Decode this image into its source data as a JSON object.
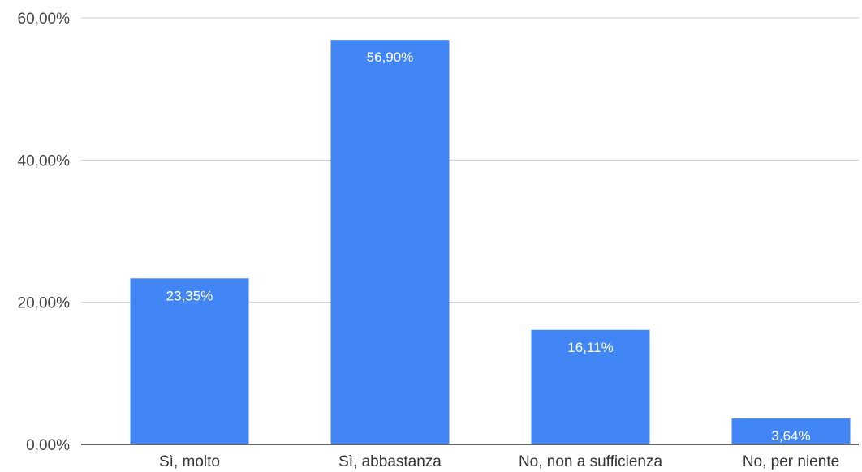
{
  "chart_data": {
    "type": "bar",
    "categories": [
      "Sì, molto",
      "Sì, abbastanza",
      "No, non a sufficienza",
      "No, per niente"
    ],
    "values": [
      23.35,
      56.9,
      16.11,
      3.64
    ],
    "data_labels": [
      "23,35%",
      "56,90%",
      "16,11%",
      "3,64%"
    ],
    "ylim": [
      0,
      60
    ],
    "yticks": [
      0,
      20,
      40,
      60
    ],
    "ytick_labels": [
      "0,00%",
      "20,00%",
      "40,00%",
      "60,00%"
    ],
    "grid": true,
    "bar_color": "#4285F4",
    "title": "",
    "xlabel": "",
    "ylabel": ""
  }
}
